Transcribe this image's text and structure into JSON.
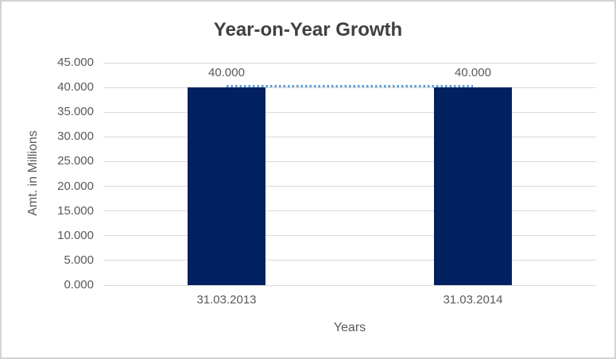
{
  "chart_data": {
    "type": "bar",
    "title": "Year-on-Year Growth",
    "xlabel": "Years",
    "ylabel": "Amt. in Millions",
    "categories": [
      "31.03.2013",
      "31.03.2014"
    ],
    "series": [
      {
        "type": "bar",
        "values": [
          40000,
          40000
        ],
        "data_labels": [
          "40.000",
          "40.000"
        ],
        "color": "#002060"
      },
      {
        "type": "line",
        "values": [
          40000,
          40000
        ],
        "line_style": "dotted",
        "color": "#5B9BD5"
      }
    ],
    "ylim": [
      0,
      45000
    ],
    "ytick_step": 5000,
    "ytick_labels": [
      "0.000",
      "5.000",
      "10.000",
      "15.000",
      "20.000",
      "25.000",
      "30.000",
      "35.000",
      "40.000",
      "45.000"
    ],
    "grid": true,
    "legend": false,
    "colors": {
      "bar": "#002060",
      "dotted_line": "#5B9BD5",
      "gridline": "#D9D9D9",
      "tick_text": "#595959",
      "title_text": "#404040",
      "border": "#D3D3D3",
      "background": "#FFFFFF"
    }
  }
}
